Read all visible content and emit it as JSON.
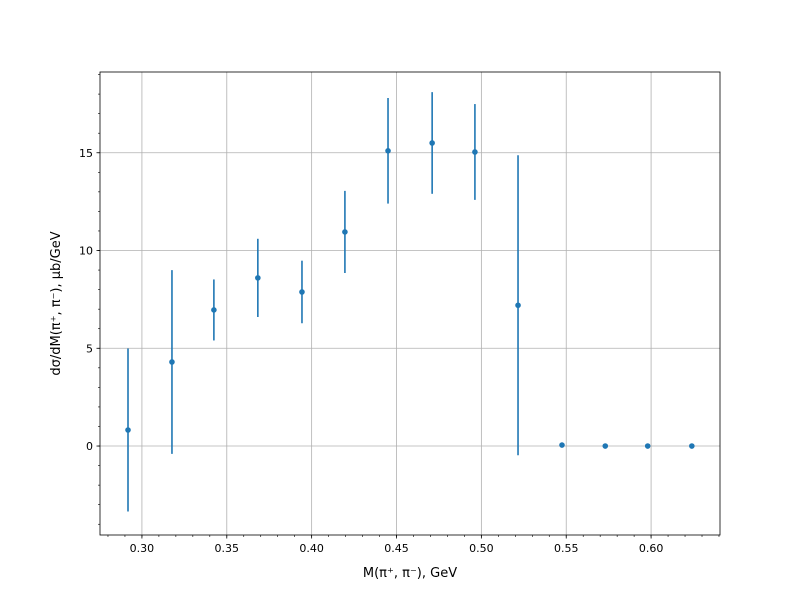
{
  "chart_data": {
    "type": "scatter",
    "title": "",
    "xlabel": "M(π⁺, π⁻), GeV",
    "ylabel": "dσ/dM(π⁺, π⁻), μb/GeV",
    "xlim": [
      0.2753,
      0.6406
    ],
    "ylim": [
      -4.55,
      19.13
    ],
    "xticks": [
      0.3,
      0.35,
      0.4,
      0.45,
      0.5,
      0.55,
      0.6
    ],
    "xtick_labels": [
      "0.30",
      "0.35",
      "0.40",
      "0.45",
      "0.50",
      "0.55",
      "0.60"
    ],
    "yticks": [
      0,
      5,
      10,
      15
    ],
    "ytick_labels": [
      "0",
      "5",
      "10",
      "15"
    ],
    "x_minor_step": 0.01,
    "y_minor_step": 1,
    "grid": true,
    "color": "#1f77b4",
    "grid_color": "#b0b0b0",
    "series": [
      {
        "x": [
          0.2918,
          0.3177,
          0.3424,
          0.3683,
          0.3943,
          0.4196,
          0.445,
          0.471,
          0.4962,
          0.5216,
          0.5475,
          0.573,
          0.598,
          0.624
        ],
        "y": [
          0.82,
          4.3,
          6.96,
          8.6,
          7.88,
          10.95,
          15.1,
          15.5,
          15.04,
          7.2,
          0.05,
          0.0,
          0.0,
          0.0
        ],
        "yerr": [
          4.17,
          4.7,
          1.56,
          2.0,
          1.6,
          2.1,
          2.7,
          2.6,
          2.45,
          7.67,
          0,
          0,
          0,
          0
        ]
      }
    ]
  }
}
